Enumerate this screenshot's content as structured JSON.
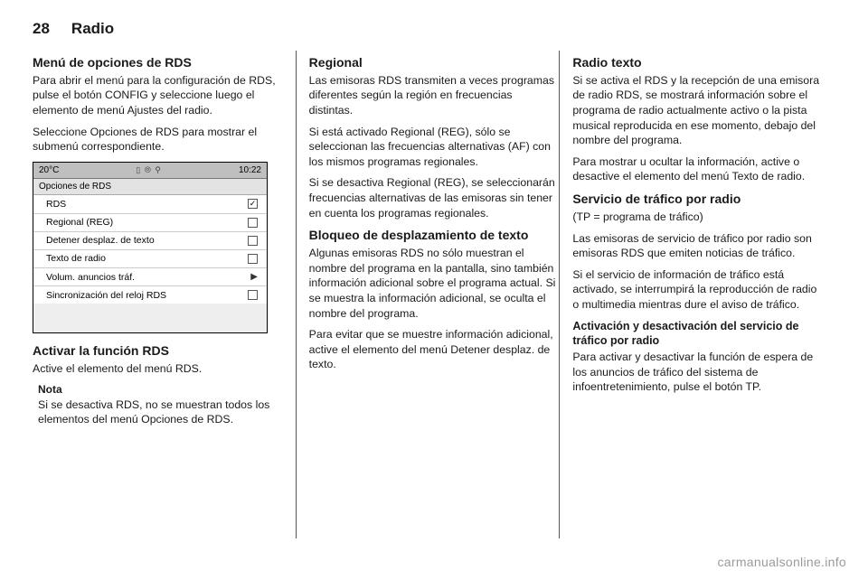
{
  "header": {
    "page_number": "28",
    "section": "Radio"
  },
  "col1": {
    "h_menu": "Menú de opciones de RDS",
    "p_menu": "Para abrir el menú para la configuración de RDS, pulse el botón CONFIG y seleccione luego el elemento de menú Ajustes del radio.",
    "p_select": "Seleccione Opciones de RDS para mostrar el submenú correspondiente.",
    "h_activate": "Activar la función RDS",
    "p_activate": "Active el elemento del menú RDS.",
    "note_title": "Nota",
    "note_body": "Si se desactiva RDS, no se muestran todos los elementos del menú Opciones de RDS."
  },
  "screenshot": {
    "temp": "20°C",
    "time": "10:22",
    "title": "Opciones de RDS",
    "rows": [
      {
        "label": "RDS",
        "type": "check",
        "checked": true
      },
      {
        "label": "Regional (REG)",
        "type": "check",
        "checked": false
      },
      {
        "label": "Detener desplaz. de texto",
        "type": "check",
        "checked": false
      },
      {
        "label": "Texto de radio",
        "type": "check",
        "checked": false
      },
      {
        "label": "Volum. anuncios tráf.",
        "type": "arrow"
      },
      {
        "label": "Sincronización del reloj RDS",
        "type": "check",
        "checked": false
      }
    ]
  },
  "col2": {
    "h_regional": "Regional",
    "p_reg1": "Las emisoras RDS transmiten a veces programas diferentes según la región en frecuencias distintas.",
    "p_reg2": "Si está activado Regional (REG), sólo se seleccionan las frecuencias alternativas (AF) con los mismos programas regionales.",
    "p_reg3": "Si se desactiva Regional (REG), se seleccionarán frecuencias alternativas de las emisoras sin tener en cuenta los programas regionales.",
    "h_scroll": "Bloqueo de desplazamiento de texto",
    "p_scroll1": "Algunas emisoras RDS no sólo muestran el nombre del programa en la pantalla, sino también información adicional sobre el programa actual. Si se muestra la información adicional, se oculta el nombre del programa.",
    "p_scroll2": "Para evitar que se muestre información adicional, active el elemento del menú Detener desplaz. de texto."
  },
  "col3": {
    "h_radiotext": "Radio texto",
    "p_rt1": "Si se activa el RDS y la recepción de una emisora de radio RDS, se mostrará información sobre el programa de radio actualmente activo o la pista musical reproducida en ese momento, debajo del nombre del programa.",
    "p_rt2": "Para mostrar u ocultar la información, active o desactive el elemento del menú Texto de radio.",
    "h_traffic": "Servicio de tráfico por radio",
    "p_tp": "(TP = programa de tráfico)",
    "p_tr1": "Las emisoras de servicio de tráfico por radio son emisoras RDS que emiten noticias de tráfico.",
    "p_tr2": "Si el servicio de información de tráfico está activado, se interrumpirá la reproducción de radio o multimedia mientras dure el aviso de tráfico.",
    "h_onoff": "Activación y desactivación del servicio de tráfico por radio",
    "p_onoff": "Para activar y desactivar la función de espera de los anuncios de tráfico del sistema de infoentretenimiento, pulse el botón TP."
  },
  "watermark": "carmanualsonline.info"
}
